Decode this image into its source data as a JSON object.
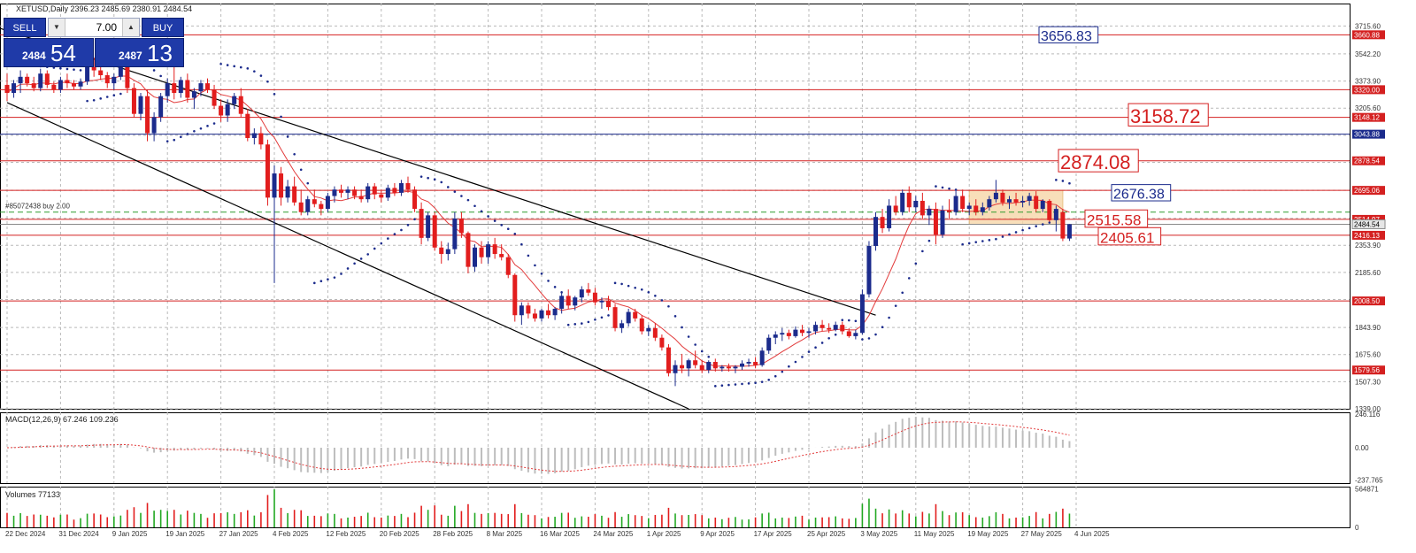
{
  "window": {
    "header": "XETUSD,Daily  2396.23 2485.69 2380.91 2484.54"
  },
  "trade_panel": {
    "sell_label": "SELL",
    "buy_label": "BUY",
    "volume": "7.00",
    "sell_price_small": "2484",
    "sell_price_big": "54",
    "buy_price_small": "2487",
    "buy_price_big": "13"
  },
  "chart_data": {
    "type": "candlestick",
    "symbol": "XETUSD",
    "timeframe": "Daily",
    "ylim": [
      1339,
      3800
    ],
    "y_ticks": [
      "3715.60",
      "3542.20",
      "3373.90",
      "3205.60",
      "3037.30",
      "2869.00",
      "2695.06",
      "2521.70",
      "2353.90",
      "2185.60",
      "2017.30",
      "1843.90",
      "1675.60",
      "1507.30",
      "1339.00"
    ],
    "x_ticks": [
      "22 Dec 2024",
      "31 Dec 2024",
      "9 Jan 2025",
      "19 Jan 2025",
      "27 Jan 2025",
      "4 Feb 2025",
      "12 Feb 2025",
      "20 Feb 2025",
      "28 Feb 2025",
      "8 Mar 2025",
      "16 Mar 2025",
      "24 Mar 2025",
      "1 Apr 2025",
      "9 Apr 2025",
      "17 Apr 2025",
      "25 Apr 2025",
      "3 May 2025",
      "11 May 2025",
      "19 May 2025",
      "27 May 2025",
      "4 Jun 2025"
    ],
    "ohlc": [
      [
        3350,
        3420,
        3250,
        3300
      ],
      [
        3300,
        3380,
        3270,
        3360
      ],
      [
        3360,
        3440,
        3300,
        3400
      ],
      [
        3400,
        3420,
        3340,
        3360
      ],
      [
        3360,
        3400,
        3310,
        3330
      ],
      [
        3330,
        3450,
        3310,
        3420
      ],
      [
        3420,
        3440,
        3330,
        3350
      ],
      [
        3350,
        3370,
        3300,
        3320
      ],
      [
        3320,
        3400,
        3300,
        3380
      ],
      [
        3380,
        3420,
        3330,
        3360
      ],
      [
        3360,
        3380,
        3320,
        3340
      ],
      [
        3340,
        3390,
        3320,
        3370
      ],
      [
        3370,
        3480,
        3350,
        3460
      ],
      [
        3460,
        3520,
        3400,
        3440
      ],
      [
        3440,
        3470,
        3380,
        3410
      ],
      [
        3410,
        3430,
        3330,
        3360
      ],
      [
        3360,
        3420,
        3320,
        3400
      ],
      [
        3400,
        3480,
        3380,
        3460
      ],
      [
        3460,
        3480,
        3300,
        3330
      ],
      [
        3330,
        3360,
        3150,
        3170
      ],
      [
        3170,
        3300,
        3130,
        3280
      ],
      [
        3280,
        3320,
        3000,
        3050
      ],
      [
        3050,
        3180,
        3000,
        3150
      ],
      [
        3150,
        3300,
        3120,
        3280
      ],
      [
        3280,
        3390,
        3240,
        3360
      ],
      [
        3360,
        3480,
        3260,
        3300
      ],
      [
        3300,
        3400,
        3270,
        3380
      ],
      [
        3380,
        3420,
        3240,
        3270
      ],
      [
        3270,
        3330,
        3200,
        3310
      ],
      [
        3310,
        3380,
        3280,
        3360
      ],
      [
        3360,
        3390,
        3300,
        3320
      ],
      [
        3320,
        3350,
        3200,
        3220
      ],
      [
        3220,
        3260,
        3120,
        3160
      ],
      [
        3160,
        3260,
        3120,
        3230
      ],
      [
        3230,
        3300,
        3200,
        3280
      ],
      [
        3280,
        3330,
        3150,
        3170
      ],
      [
        3170,
        3200,
        3000,
        3020
      ],
      [
        3020,
        3080,
        2980,
        3050
      ],
      [
        3050,
        3090,
        2950,
        2980
      ],
      [
        2980,
        3010,
        2600,
        2650
      ],
      [
        2650,
        2850,
        2120,
        2800
      ],
      [
        2800,
        2840,
        2600,
        2650
      ],
      [
        2650,
        2760,
        2620,
        2720
      ],
      [
        2720,
        2780,
        2600,
        2620
      ],
      [
        2620,
        2700,
        2540,
        2560
      ],
      [
        2560,
        2660,
        2540,
        2640
      ],
      [
        2640,
        2700,
        2590,
        2610
      ],
      [
        2610,
        2630,
        2540,
        2580
      ],
      [
        2580,
        2680,
        2560,
        2660
      ],
      [
        2660,
        2720,
        2620,
        2700
      ],
      [
        2700,
        2730,
        2650,
        2680
      ],
      [
        2680,
        2720,
        2640,
        2700
      ],
      [
        2700,
        2720,
        2640,
        2660
      ],
      [
        2660,
        2700,
        2620,
        2640
      ],
      [
        2640,
        2740,
        2620,
        2720
      ],
      [
        2720,
        2740,
        2640,
        2670
      ],
      [
        2670,
        2700,
        2620,
        2650
      ],
      [
        2650,
        2730,
        2630,
        2710
      ],
      [
        2710,
        2740,
        2660,
        2680
      ],
      [
        2680,
        2760,
        2660,
        2740
      ],
      [
        2740,
        2780,
        2680,
        2700
      ],
      [
        2700,
        2720,
        2560,
        2580
      ],
      [
        2580,
        2620,
        2360,
        2400
      ],
      [
        2400,
        2560,
        2380,
        2540
      ],
      [
        2540,
        2560,
        2320,
        2340
      ],
      [
        2340,
        2380,
        2240,
        2300
      ],
      [
        2300,
        2370,
        2260,
        2330
      ],
      [
        2330,
        2560,
        2300,
        2520
      ],
      [
        2520,
        2560,
        2400,
        2430
      ],
      [
        2430,
        2440,
        2180,
        2220
      ],
      [
        2220,
        2360,
        2190,
        2340
      ],
      [
        2340,
        2380,
        2240,
        2280
      ],
      [
        2280,
        2380,
        2240,
        2360
      ],
      [
        2360,
        2400,
        2270,
        2300
      ],
      [
        2300,
        2360,
        2260,
        2280
      ],
      [
        2280,
        2300,
        2150,
        2170
      ],
      [
        2170,
        2180,
        1880,
        1920
      ],
      [
        1920,
        2000,
        1860,
        1980
      ],
      [
        1980,
        2000,
        1900,
        1930
      ],
      [
        1930,
        1960,
        1880,
        1900
      ],
      [
        1900,
        1960,
        1880,
        1950
      ],
      [
        1950,
        1990,
        1900,
        1920
      ],
      [
        1920,
        1970,
        1890,
        1960
      ],
      [
        1960,
        2060,
        1930,
        2040
      ],
      [
        2040,
        2080,
        1960,
        1980
      ],
      [
        1980,
        2040,
        1950,
        2030
      ],
      [
        2030,
        2100,
        2000,
        2080
      ],
      [
        2080,
        2120,
        2040,
        2060
      ],
      [
        2060,
        2090,
        1980,
        2000
      ],
      [
        2000,
        2030,
        1960,
        2010
      ],
      [
        2010,
        2040,
        1950,
        1970
      ],
      [
        1970,
        1990,
        1820,
        1840
      ],
      [
        1840,
        1890,
        1810,
        1870
      ],
      [
        1870,
        1960,
        1850,
        1940
      ],
      [
        1940,
        1960,
        1880,
        1900
      ],
      [
        1900,
        1920,
        1800,
        1820
      ],
      [
        1820,
        1860,
        1790,
        1840
      ],
      [
        1840,
        1870,
        1760,
        1780
      ],
      [
        1780,
        1800,
        1700,
        1720
      ],
      [
        1720,
        1740,
        1540,
        1560
      ],
      [
        1560,
        1640,
        1480,
        1610
      ],
      [
        1610,
        1680,
        1560,
        1590
      ],
      [
        1590,
        1650,
        1540,
        1640
      ],
      [
        1640,
        1700,
        1590,
        1610
      ],
      [
        1610,
        1640,
        1560,
        1580
      ],
      [
        1580,
        1640,
        1560,
        1630
      ],
      [
        1630,
        1650,
        1570,
        1590
      ],
      [
        1590,
        1610,
        1570,
        1600
      ],
      [
        1600,
        1620,
        1570,
        1590
      ],
      [
        1590,
        1610,
        1560,
        1600
      ],
      [
        1600,
        1640,
        1580,
        1620
      ],
      [
        1620,
        1650,
        1600,
        1630
      ],
      [
        1630,
        1660,
        1590,
        1610
      ],
      [
        1610,
        1720,
        1600,
        1700
      ],
      [
        1700,
        1800,
        1680,
        1780
      ],
      [
        1780,
        1820,
        1740,
        1800
      ],
      [
        1800,
        1840,
        1760,
        1810
      ],
      [
        1810,
        1830,
        1770,
        1790
      ],
      [
        1790,
        1850,
        1780,
        1830
      ],
      [
        1830,
        1860,
        1790,
        1810
      ],
      [
        1810,
        1840,
        1780,
        1820
      ],
      [
        1820,
        1880,
        1800,
        1860
      ],
      [
        1860,
        1890,
        1820,
        1840
      ],
      [
        1840,
        1870,
        1810,
        1830
      ],
      [
        1830,
        1880,
        1820,
        1860
      ],
      [
        1860,
        1880,
        1800,
        1820
      ],
      [
        1820,
        1840,
        1780,
        1790
      ],
      [
        1790,
        1830,
        1770,
        1810
      ],
      [
        1810,
        2080,
        1800,
        2050
      ],
      [
        2050,
        2380,
        2030,
        2350
      ],
      [
        2350,
        2560,
        2320,
        2530
      ],
      [
        2530,
        2580,
        2430,
        2460
      ],
      [
        2460,
        2640,
        2440,
        2600
      ],
      [
        2600,
        2660,
        2540,
        2560
      ],
      [
        2560,
        2700,
        2540,
        2680
      ],
      [
        2680,
        2720,
        2560,
        2590
      ],
      [
        2590,
        2660,
        2560,
        2630
      ],
      [
        2630,
        2680,
        2520,
        2540
      ],
      [
        2540,
        2600,
        2480,
        2580
      ],
      [
        2580,
        2620,
        2360,
        2420
      ],
      [
        2420,
        2600,
        2400,
        2570
      ],
      [
        2570,
        2640,
        2520,
        2560
      ],
      [
        2560,
        2690,
        2540,
        2660
      ],
      [
        2660,
        2700,
        2560,
        2580
      ],
      [
        2580,
        2620,
        2540,
        2600
      ],
      [
        2600,
        2640,
        2540,
        2560
      ],
      [
        2560,
        2620,
        2540,
        2590
      ],
      [
        2590,
        2660,
        2570,
        2640
      ],
      [
        2640,
        2760,
        2620,
        2680
      ],
      [
        2680,
        2700,
        2600,
        2620
      ],
      [
        2620,
        2660,
        2580,
        2640
      ],
      [
        2640,
        2680,
        2600,
        2620
      ],
      [
        2620,
        2660,
        2590,
        2630
      ],
      [
        2630,
        2680,
        2600,
        2660
      ],
      [
        2660,
        2690,
        2560,
        2580
      ],
      [
        2580,
        2640,
        2560,
        2630
      ],
      [
        2630,
        2640,
        2500,
        2510
      ],
      [
        2510,
        2600,
        2440,
        2580
      ],
      [
        2560,
        2580,
        2380,
        2396
      ],
      [
        2396,
        2486,
        2381,
        2485
      ]
    ],
    "indicators": {
      "macd": {
        "label": "MACD(12,26,9) 67.246 109.236",
        "ticks": [
          "246.116",
          "0.00",
          "-237.765"
        ],
        "ylim": [
          -260,
          260
        ]
      },
      "volumes": {
        "label": "Volumes 77133",
        "ticks": [
          "564871",
          "0"
        ],
        "ylim": [
          0,
          600000
        ]
      }
    },
    "annotations": {
      "horizontal_levels": [
        {
          "value": 3660.88,
          "label": "3660.88",
          "color": "#d42020"
        },
        {
          "value": 3320.0,
          "label": "3320.00",
          "color": "#d42020"
        },
        {
          "value": 3148.12,
          "label": "3148.12",
          "color": "#d42020"
        },
        {
          "value": 3043.88,
          "label": "3043.88",
          "color": "#1b2b8c"
        },
        {
          "value": 2878.54,
          "label": "2878.54",
          "color": "#d42020"
        },
        {
          "value": 2695.06,
          "label": "2695.06",
          "color": "#d42020"
        },
        {
          "value": 2514.97,
          "label": "2514.97",
          "color": "#d42020"
        },
        {
          "value": 2416.13,
          "label": "2416.13",
          "color": "#d42020"
        },
        {
          "value": 2008.5,
          "label": "2008.50",
          "color": "#d42020"
        },
        {
          "value": 1579.56,
          "label": "1579.56",
          "color": "#d42020"
        }
      ],
      "price_labels": [
        {
          "value": 3656.83,
          "text": "3656.83",
          "color": "#1b2b8c"
        },
        {
          "value": 3158.72,
          "text": "3158.72",
          "color": "#d42020"
        },
        {
          "value": 2874.08,
          "text": "2874.08",
          "color": "#d42020"
        },
        {
          "value": 2676.38,
          "text": "2676.38",
          "color": "#1b2b8c"
        },
        {
          "value": 2515.58,
          "text": "2515.58",
          "color": "#d42020"
        },
        {
          "value": 2405.61,
          "text": "2405.61",
          "color": "#d42020"
        }
      ],
      "current_bid": {
        "value": 2484.54,
        "label": "2484.54"
      },
      "order_line": {
        "value": 2560,
        "text": "#85072438 buy 2.00"
      },
      "range_box": {
        "from": 144,
        "to": 158,
        "top": 2695,
        "bottom": 2484,
        "color": "#f7d7a8"
      },
      "channel": {
        "upper": [
          [
            -12,
            3850
          ],
          [
            130,
            1920
          ]
        ],
        "lower": [
          [
            0,
            3240
          ],
          [
            102,
            1339
          ]
        ]
      }
    }
  }
}
